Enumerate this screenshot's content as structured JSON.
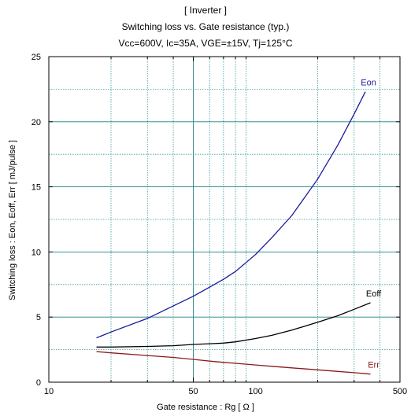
{
  "title_lines": [
    "[ Inverter ]",
    "Switching loss  vs.  Gate resistance (typ.)",
    "Vcc=600V, Ic=35A, VGE=±15V, Tj=125°C"
  ],
  "chart_data": {
    "type": "line",
    "title": "[ Inverter ] Switching loss vs. Gate resistance (typ.)",
    "subtitle": "Vcc=600V, Ic=35A, VGE=±15V, Tj=125°C",
    "xlabel": "Gate resistance : Rg [ Ω ]",
    "ylabel": "Switching loss : Eon, Eoff, Err [ mJ/pulse ]",
    "xscale": "log",
    "xlim": [
      10,
      500
    ],
    "ylim": [
      0,
      25
    ],
    "xticks": [
      10,
      50,
      100,
      500
    ],
    "yticks": [
      0,
      5,
      10,
      15,
      20,
      25
    ],
    "grid": true,
    "legend": "inline labels",
    "series": [
      {
        "name": "Eon",
        "color": "#1a1a9c",
        "x": [
          17,
          20,
          30,
          40,
          50,
          60,
          70,
          80,
          100,
          120,
          150,
          200,
          250,
          300,
          340
        ],
        "y": [
          3.4,
          3.85,
          4.9,
          5.85,
          6.6,
          7.3,
          7.9,
          8.5,
          9.8,
          11.1,
          12.8,
          15.6,
          18.2,
          20.6,
          22.3
        ]
      },
      {
        "name": "Eoff",
        "color": "#000000",
        "x": [
          17,
          20,
          30,
          40,
          50,
          60,
          70,
          80,
          100,
          120,
          150,
          200,
          250,
          300,
          360
        ],
        "y": [
          2.7,
          2.7,
          2.75,
          2.8,
          2.9,
          2.95,
          3.0,
          3.1,
          3.35,
          3.6,
          4.0,
          4.6,
          5.1,
          5.6,
          6.1
        ]
      },
      {
        "name": "Err",
        "color": "#8b1a1a",
        "x": [
          17,
          20,
          30,
          40,
          50,
          60,
          70,
          80,
          100,
          120,
          150,
          200,
          250,
          300,
          360
        ],
        "y": [
          2.35,
          2.25,
          2.05,
          1.9,
          1.75,
          1.62,
          1.52,
          1.45,
          1.32,
          1.22,
          1.1,
          0.95,
          0.83,
          0.73,
          0.62
        ]
      }
    ]
  }
}
